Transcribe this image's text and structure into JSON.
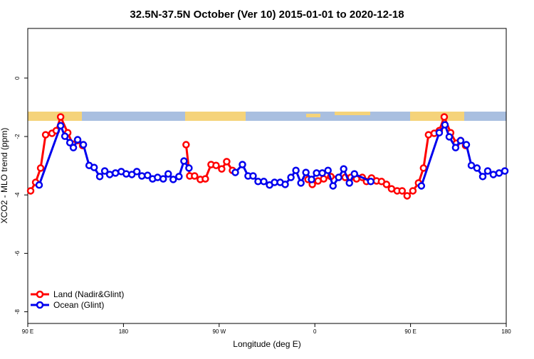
{
  "chart_data": {
    "type": "line",
    "title": "32.5N-37.5N October (Ver 10)   2015-01-01 to 2020-12-18",
    "x_label": "Longitude (deg E)",
    "y_label": "XCO2 - MLO trend (ppm)",
    "xlim": [
      90,
      540
    ],
    "xticks": [
      {
        "value": 90,
        "label": "90 E"
      },
      180,
      {
        "value": 270,
        "label": "90 W"
      },
      {
        "value": 360,
        "label": "0"
      },
      {
        "value": 450,
        "label": "90 E"
      },
      {
        "value": 540,
        "label": "180"
      }
    ],
    "ylim": [
      -8.4,
      1.7
    ],
    "yticks": [
      0,
      -2,
      -4,
      -6,
      -8
    ],
    "legend": "bottom-left",
    "series": [
      {
        "name": "Land (Nadir&Glint)",
        "color": "#ff0000",
        "x": [
          92.7,
          97.4,
          102.1,
          106.8,
          112.8,
          116.8,
          120.9,
          127.6,
          132.3,
          136.9,
          141.6,
          200,
          238.9,
          242.3,
          246.9,
          252.3,
          257.0,
          262.4,
          267.1,
          272.4,
          277.1,
          282.5,
          300,
          353.6,
          357.6,
          363.0,
          368.3,
          375.0,
          388.5,
          393.8,
          399.2,
          404.6,
          408.6,
          413.3,
          418.0,
          422.7,
          427.4,
          432.1,
          437.4,
          442.1,
          446.8,
          452.2,
          457.5,
          462.2,
          466.9,
          472.3,
          477.0,
          481.7,
          487.7,
          493.1,
          497.1,
          501.8
        ],
        "values": [
          -3.86,
          -3.57,
          -3.08,
          -1.94,
          -1.89,
          -1.8,
          -1.33,
          -1.87,
          -2.26,
          -2.14,
          -2.31,
          null,
          -2.28,
          -3.35,
          -3.35,
          -3.47,
          -3.45,
          -2.96,
          -2.99,
          -3.11,
          -2.86,
          -3.16,
          null,
          -3.47,
          -3.64,
          -3.52,
          -3.45,
          -3.37,
          -3.4,
          -3.4,
          -3.45,
          -3.4,
          -3.54,
          -3.42,
          -3.52,
          -3.54,
          -3.64,
          -3.79,
          -3.86,
          -3.86,
          -4.03,
          -3.86,
          -3.59,
          -3.08,
          -1.94,
          -1.89,
          -1.8,
          -1.33,
          -1.87,
          -2.23,
          -2.14,
          -2.31
        ]
      },
      {
        "name": "Ocean (Glint)",
        "color": "#0000ee",
        "x": [
          100.7,
          120.9,
          124.9,
          129.6,
          132.9,
          136.9,
          142.3,
          147.7,
          152.4,
          157.7,
          162.4,
          167.1,
          172.5,
          177.9,
          182.6,
          187.9,
          192.6,
          197.3,
          202.7,
          207.4,
          212.1,
          217.4,
          222.1,
          226.8,
          232.2,
          236.9,
          241.6,
          260,
          285.2,
          291.9,
          297.2,
          301.9,
          306.6,
          312.0,
          317.4,
          322.1,
          327.4,
          332.1,
          337.5,
          342.2,
          346.9,
          351.6,
          356.9,
          361.6,
          367.0,
          372.4,
          377.1,
          382.4,
          387.1,
          392.5,
          397.2,
          412.6,
          430,
          460.2,
          477.0,
          482.4,
          486.4,
          492.4,
          497.1,
          502.5,
          507.2,
          512.5,
          517.9,
          522.6,
          527.9,
          533.3,
          538.7
        ],
        "values": [
          -3.66,
          -1.63,
          -1.99,
          -2.21,
          -2.38,
          -2.11,
          -2.28,
          -2.99,
          -3.06,
          -3.37,
          -3.18,
          -3.3,
          -3.25,
          -3.2,
          -3.28,
          -3.3,
          -3.2,
          -3.35,
          -3.33,
          -3.45,
          -3.4,
          -3.45,
          -3.28,
          -3.47,
          -3.37,
          -2.84,
          -3.08,
          null,
          -3.23,
          -2.96,
          -3.35,
          -3.35,
          -3.54,
          -3.54,
          -3.66,
          -3.57,
          -3.57,
          -3.64,
          -3.4,
          -3.16,
          -3.59,
          -3.23,
          -3.47,
          -3.25,
          -3.25,
          -3.16,
          -3.69,
          -3.4,
          -3.11,
          -3.59,
          -3.28,
          -3.54,
          null,
          -3.69,
          -1.87,
          -1.6,
          -2.01,
          -2.38,
          -2.14,
          -2.28,
          -2.99,
          -3.08,
          -3.37,
          -3.18,
          -3.3,
          -3.25,
          -3.18
        ]
      }
    ]
  }
}
